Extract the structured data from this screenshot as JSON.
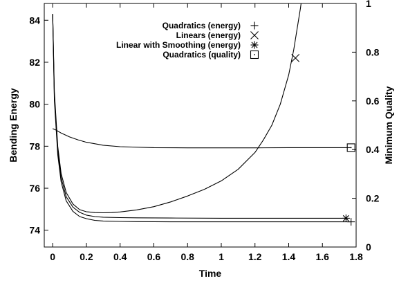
{
  "chart_data": {
    "type": "line",
    "title": "",
    "xlabel": "Time",
    "ylabel": "Bending Energy",
    "y2label": "Minimum Quality",
    "xlim": [
      -0.05,
      1.8
    ],
    "ylim": [
      73.2,
      84.8
    ],
    "y2lim": [
      0,
      1
    ],
    "x_ticks": [
      "0",
      "0.2",
      "0.4",
      "0.6",
      "0.8",
      "1",
      "1.2",
      "1.4",
      "1.6",
      "1.8"
    ],
    "y_ticks": [
      "74",
      "76",
      "78",
      "80",
      "82",
      "84"
    ],
    "y2_ticks": [
      "0",
      "0.2",
      "0.4",
      "0.6",
      "0.8",
      "1"
    ],
    "grid": false,
    "legend_position": "top-right",
    "series": [
      {
        "name": "Quadratics (energy)",
        "marker": "+",
        "axis": "left",
        "x": [
          0.0,
          0.01,
          0.03,
          0.05,
          0.08,
          0.12,
          0.16,
          0.2,
          0.25,
          0.3,
          0.4,
          0.5,
          0.7,
          1.0,
          1.3,
          1.6,
          1.77
        ],
        "y": [
          84.3,
          80.2,
          77.6,
          76.3,
          75.4,
          74.9,
          74.65,
          74.55,
          74.47,
          74.44,
          74.42,
          74.41,
          74.4,
          74.4,
          74.4,
          74.4,
          74.4
        ]
      },
      {
        "name": "Linears (energy)",
        "marker": "x",
        "axis": "left",
        "x": [
          0.0,
          0.01,
          0.03,
          0.05,
          0.08,
          0.12,
          0.16,
          0.2,
          0.25,
          0.3,
          0.35,
          0.4,
          0.5,
          0.6,
          0.7,
          0.8,
          0.9,
          1.0,
          1.1,
          1.2,
          1.25,
          1.3,
          1.35,
          1.4,
          1.43,
          1.45,
          1.47,
          1.48
        ],
        "y": [
          84.3,
          80.6,
          78.0,
          76.7,
          75.8,
          75.25,
          74.98,
          74.88,
          74.84,
          74.83,
          74.84,
          74.87,
          74.97,
          75.12,
          75.35,
          75.63,
          75.95,
          76.35,
          76.9,
          77.7,
          78.3,
          79.0,
          80.0,
          81.4,
          82.6,
          83.6,
          84.6,
          85.2
        ],
        "marker_points": [
          [
            1.44,
            82.2
          ]
        ]
      },
      {
        "name": "Linear with Smoothing (energy)",
        "marker": "*",
        "axis": "left",
        "x": [
          0.0,
          0.01,
          0.03,
          0.05,
          0.08,
          0.12,
          0.16,
          0.2,
          0.25,
          0.3,
          0.4,
          0.5,
          0.7,
          1.0,
          1.3,
          1.6,
          1.74
        ],
        "y": [
          84.3,
          80.4,
          77.8,
          76.5,
          75.6,
          75.1,
          74.85,
          74.72,
          74.65,
          74.62,
          74.6,
          74.59,
          74.58,
          74.57,
          74.57,
          74.57,
          74.57
        ]
      },
      {
        "name": "Quadratics (quality)",
        "marker": "square",
        "axis": "right",
        "x": [
          0.0,
          0.02,
          0.05,
          0.1,
          0.15,
          0.2,
          0.3,
          0.4,
          0.6,
          0.8,
          1.0,
          1.2,
          1.4,
          1.6,
          1.77
        ],
        "y": [
          0.486,
          0.48,
          0.468,
          0.452,
          0.44,
          0.43,
          0.418,
          0.412,
          0.408,
          0.407,
          0.407,
          0.407,
          0.408,
          0.408,
          0.408
        ]
      }
    ]
  }
}
